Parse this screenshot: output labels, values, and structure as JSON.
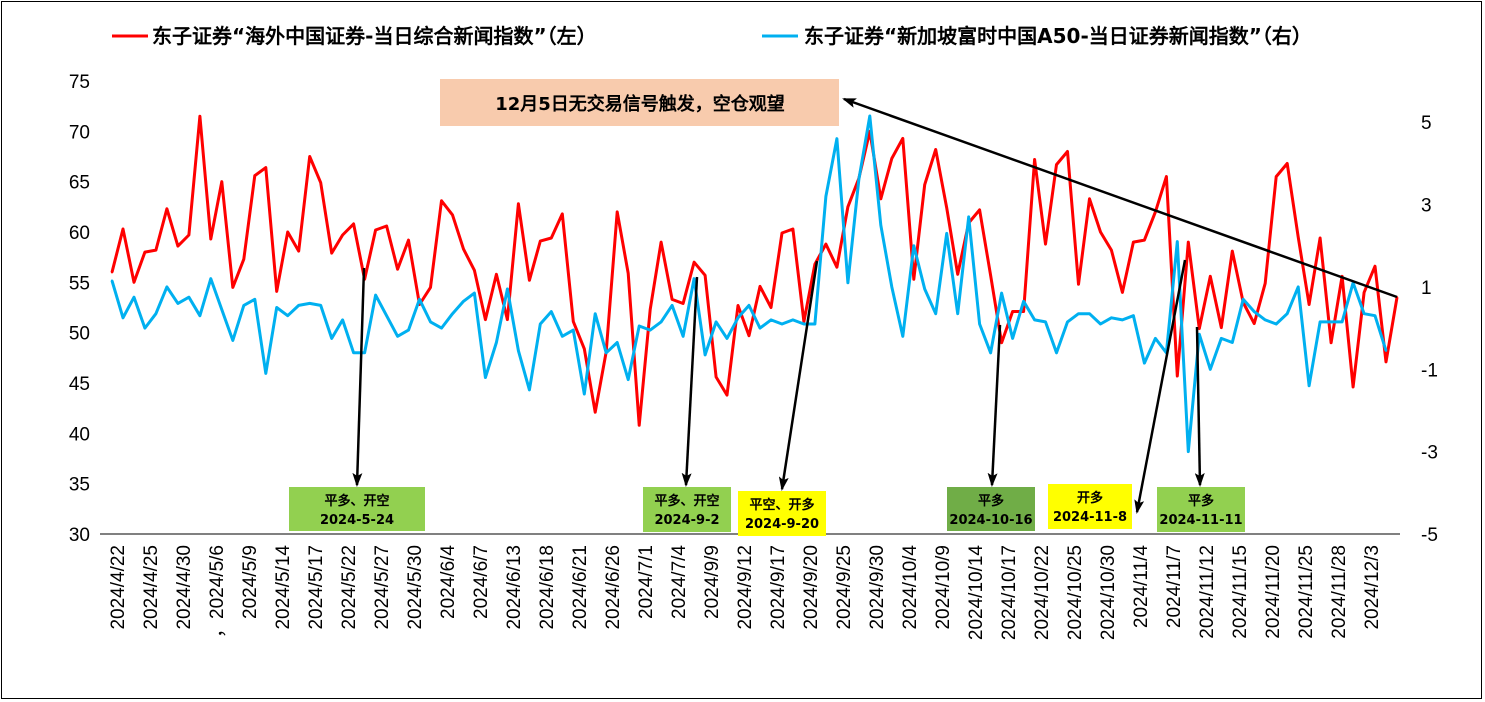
{
  "legend": {
    "left_label": "东子证券“海外中国证券-当日综合新闻指数”（左）",
    "right_label": "东子证券“新加坡富时中国A50-当日证券新闻指数”（右）"
  },
  "colors": {
    "left_series": "#ff0000",
    "right_series": "#00b0f0",
    "title_box": "#f8cbad",
    "green_box": "#92d050",
    "dark_green_box": "#70ad47",
    "yellow_box": "#ffff00"
  },
  "chart_data": {
    "type": "line",
    "x_tick_labels": [
      "2024/4/22",
      "2024/4/25",
      "2024/4/30",
      "，2024/5/6",
      "2024/5/9",
      "2024/5/14",
      "2024/5/17",
      "2024/5/22",
      "2024/5/27",
      "2024/5/30",
      "2024/6/4",
      "2024/6/7",
      "2024/6/13",
      "2024/6/18",
      "2024/6/21",
      "2024/6/26",
      "2024/7/1",
      "2024/7/4",
      "2024/9/9",
      "2024/9/12",
      "2024/9/17",
      "2024/9/20",
      "2024/9/25",
      "2024/9/30",
      "2024/10/4",
      "2024/10/9",
      "2024/10/14",
      "2024/10/17",
      "2024/10/22",
      "2024/10/25",
      "2024/10/30",
      "2024/11/4",
      "2024/11/7",
      "2024/11/12",
      "2024/11/15",
      "2024/11/20",
      "2024/11/25",
      "2024/11/28",
      "2024/12/3"
    ],
    "y_left": {
      "min": 30,
      "max": 75,
      "ticks": [
        30,
        35,
        40,
        45,
        50,
        55,
        60,
        65,
        70,
        75
      ]
    },
    "y_right": {
      "min": -5,
      "max": 6,
      "ticks": [
        -5,
        -3,
        -1,
        1,
        3,
        5
      ]
    },
    "series": [
      {
        "name": "东子证券“海外中国证券-当日综合新闻指数”（左）",
        "axis": "left",
        "values": [
          56,
          60.3,
          55,
          58,
          58.2,
          62.3,
          58.6,
          59.7,
          71.5,
          59.3,
          65,
          54.5,
          57.3,
          65.6,
          66.4,
          54.1,
          60,
          58.1,
          67.5,
          64.9,
          57.9,
          59.7,
          60.8,
          55.3,
          60.2,
          60.6,
          56.3,
          59.2,
          52.8,
          54.5,
          63.1,
          61.7,
          58.3,
          56.2,
          51.3,
          55.8,
          51.3,
          62.8,
          55.2,
          59.1,
          59.4,
          61.8,
          51.1,
          48.4,
          42.1,
          48.1,
          62,
          55.9,
          40.8,
          52.3,
          59,
          53.3,
          52.9,
          57,
          55.7,
          45.6,
          43.8,
          52.7,
          49.7,
          54.6,
          52.5,
          59.9,
          60.3,
          51.1,
          56.8,
          58.8,
          56.5,
          62.5,
          65.3,
          70,
          63.3,
          67.3,
          69.3,
          55.3,
          64.7,
          68.2,
          62.4,
          55.8,
          60.9,
          62.2,
          55.7,
          49,
          52.1,
          52.1,
          67.2,
          58.8,
          66.7,
          68,
          54.8,
          63.3,
          60,
          58.2,
          54,
          59,
          59.2,
          62,
          65.5,
          45.7,
          59,
          50.4,
          55.6,
          50.5,
          58.1,
          53,
          50.9,
          54.9,
          65.5,
          66.8,
          59.5,
          52.8,
          59.4,
          49,
          55.6,
          44.6,
          54,
          56.6,
          47.1,
          53.5
        ]
      },
      {
        "name": "东子证券“新加坡富时中国A50-当日证券新闻指数”（右）",
        "axis": "right",
        "values": [
          1.15,
          0.25,
          0.75,
          0,
          0.35,
          1,
          0.6,
          0.75,
          0.3,
          1.2,
          0.45,
          -0.3,
          0.55,
          0.7,
          -1.1,
          0.5,
          0.3,
          0.55,
          0.6,
          0.55,
          -0.25,
          0.2,
          -0.6,
          -0.6,
          0.8,
          0.3,
          -0.2,
          -0.05,
          0.7,
          0.15,
          0,
          0.35,
          0.65,
          0.85,
          -1.2,
          -0.35,
          0.95,
          -0.55,
          -1.5,
          0.1,
          0.4,
          -0.2,
          -0.05,
          -1.6,
          0.35,
          -0.6,
          -0.35,
          -1.25,
          0.05,
          -0.05,
          0.15,
          0.55,
          -0.2,
          1.2,
          -0.65,
          0.15,
          -0.25,
          0.25,
          0.55,
          0,
          0.2,
          0.1,
          0.2,
          0.1,
          0.1,
          3.2,
          4.6,
          1.1,
          3.6,
          5.15,
          2.5,
          1,
          -0.2,
          2,
          0.95,
          0.35,
          2.3,
          0.35,
          2.7,
          0.1,
          -0.6,
          0.85,
          -0.25,
          0.65,
          0.2,
          0.15,
          -0.6,
          0.15,
          0.35,
          0.35,
          0.1,
          0.25,
          0.2,
          0.3,
          -0.85,
          -0.25,
          -0.6,
          2.1,
          -3,
          -0.15,
          -1,
          -0.25,
          -0.35,
          0.7,
          0.4,
          0.2,
          0.1,
          0.35,
          1,
          -1.4,
          0.15,
          0.15,
          0.15,
          1.1,
          0.35,
          0.3,
          -0.55
        ]
      }
    ],
    "annotations": [
      {
        "text": "12月5日无交易信号触发，空仓观望",
        "style": "title_box"
      },
      {
        "line1": "平多、开空",
        "line2": "2024-5-24",
        "style": "green_box"
      },
      {
        "line1": "平多、开空",
        "line2": "2024-9-2",
        "style": "green_box"
      },
      {
        "line1": "平空、开多",
        "line2": "2024-9-20",
        "style": "yellow_box"
      },
      {
        "line1": "平多",
        "line2": "2024-10-16",
        "style": "dark_green_box"
      },
      {
        "line1": "开多",
        "line2": "2024-11-8",
        "style": "yellow_box"
      },
      {
        "line1": "平多",
        "line2": "2024-11-11",
        "style": "green_box"
      }
    ]
  }
}
